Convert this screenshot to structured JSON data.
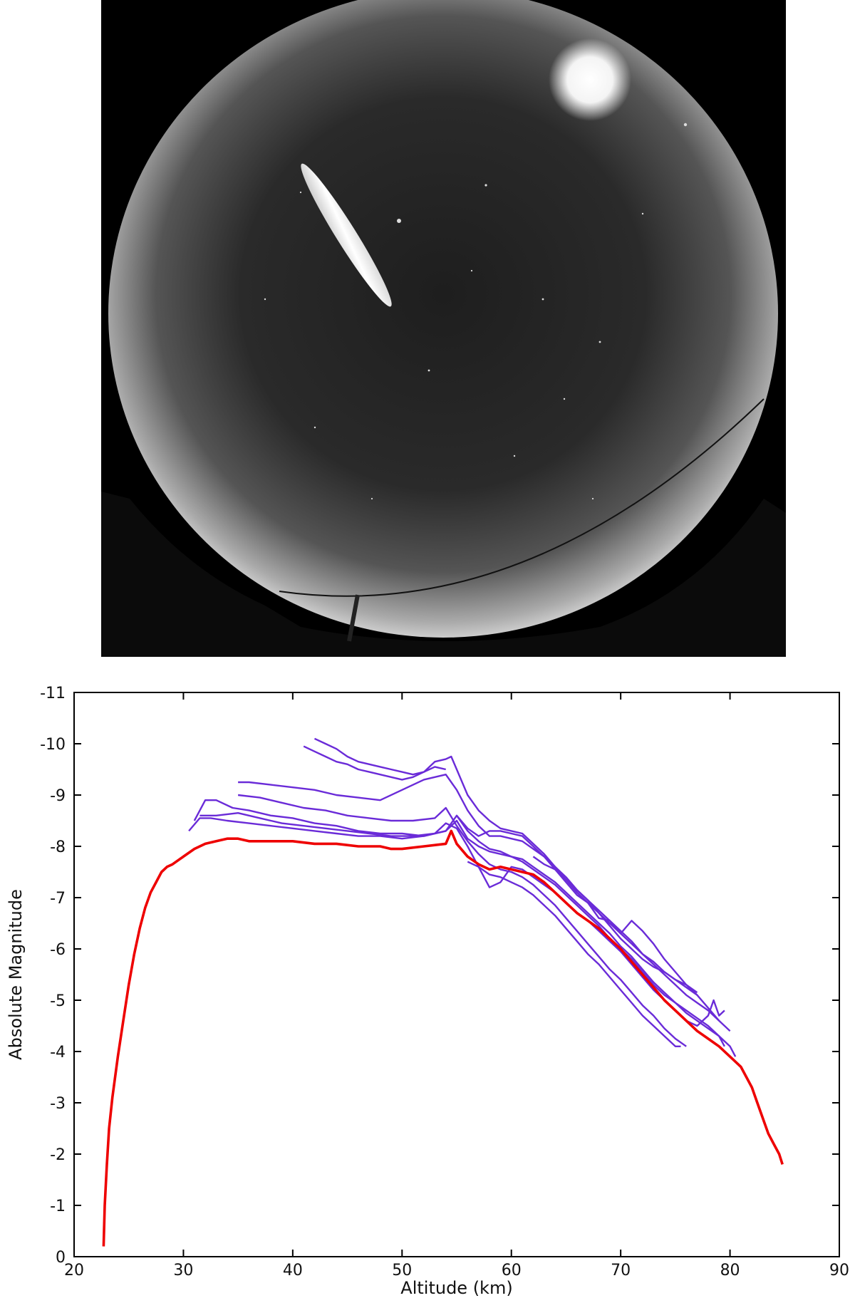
{
  "chart_data": {
    "type": "line",
    "title": "",
    "xlabel": "Altitude (km)",
    "ylabel": "Absolute Magnitude",
    "xlim": [
      20,
      90
    ],
    "ylim": [
      0,
      -11
    ],
    "y_inverted": true,
    "x_ticks": [
      "20",
      "30",
      "40",
      "50",
      "60",
      "70",
      "80",
      "90"
    ],
    "y_ticks": [
      "0",
      "-1",
      "-2",
      "-3",
      "-4",
      "-5",
      "-6",
      "-7",
      "-8",
      "-9",
      "-10",
      "-11"
    ],
    "grid": false,
    "legend": "none",
    "colors": {
      "reference": "#ee0000",
      "stations": "#6a2bd8"
    },
    "reference_curve": {
      "x": [
        22.7,
        22.8,
        23.0,
        23.2,
        23.5,
        24.0,
        24.5,
        25.0,
        25.5,
        26.0,
        26.5,
        27.0,
        27.5,
        28.0,
        28.5,
        29.0,
        30.0,
        31.0,
        32.0,
        33.0,
        34.0,
        35.0,
        36.0,
        38.0,
        40.0,
        42.0,
        44.0,
        46.0,
        48.0,
        49.0,
        50.0,
        52.0,
        54.0,
        54.5,
        55.0,
        56.0,
        57.0,
        58.0,
        59.0,
        60.0,
        61.0,
        62.0,
        63.0,
        64.0,
        65.0,
        66.0,
        67.0,
        68.0,
        69.0,
        70.0,
        71.0,
        72.0,
        73.0,
        74.0,
        75.0,
        76.0,
        77.0,
        78.0,
        79.0,
        80.0,
        81.0,
        81.5,
        82.0,
        82.5,
        83.0,
        83.5,
        84.0,
        84.5,
        84.8
      ],
      "y": [
        -0.2,
        -1.0,
        -1.8,
        -2.5,
        -3.1,
        -3.9,
        -4.6,
        -5.3,
        -5.9,
        -6.4,
        -6.8,
        -7.1,
        -7.3,
        -7.5,
        -7.6,
        -7.65,
        -7.8,
        -7.95,
        -8.05,
        -8.1,
        -8.15,
        -8.15,
        -8.1,
        -8.1,
        -8.1,
        -8.05,
        -8.05,
        -8.0,
        -8.0,
        -7.95,
        -7.95,
        -8.0,
        -8.05,
        -8.3,
        -8.05,
        -7.8,
        -7.65,
        -7.55,
        -7.6,
        -7.55,
        -7.5,
        -7.45,
        -7.3,
        -7.1,
        -6.9,
        -6.7,
        -6.55,
        -6.4,
        -6.2,
        -6.0,
        -5.75,
        -5.5,
        -5.25,
        -5.0,
        -4.8,
        -4.6,
        -4.4,
        -4.25,
        -4.1,
        -3.9,
        -3.7,
        -3.5,
        -3.3,
        -3.0,
        -2.7,
        -2.4,
        -2.2,
        -2.0,
        -1.8
      ]
    },
    "series": [
      {
        "x": [
          30.5,
          31.5,
          32.5,
          34.0,
          36.0,
          38.0,
          40.0,
          42.0,
          44.0,
          46.0,
          48.0,
          50.0,
          52.0,
          54.0,
          55.0,
          56.0,
          57.0,
          58.0,
          59.0,
          60.0,
          61.0,
          62.0,
          63.0,
          64.0,
          65.0,
          66.0,
          67.0,
          68.0,
          69.0,
          70.0,
          71.0,
          72.0,
          73.0,
          74.0,
          75.0,
          76.0,
          77.0,
          78.0,
          79.0,
          80.0,
          80.5
        ],
        "y": [
          -8.3,
          -8.55,
          -8.55,
          -8.5,
          -8.45,
          -8.4,
          -8.35,
          -8.3,
          -8.25,
          -8.2,
          -8.2,
          -8.15,
          -8.2,
          -8.3,
          -8.5,
          -8.15,
          -8.0,
          -7.9,
          -7.85,
          -7.8,
          -7.7,
          -7.55,
          -7.4,
          -7.25,
          -7.05,
          -6.85,
          -6.65,
          -6.45,
          -6.2,
          -6.0,
          -5.8,
          -5.55,
          -5.3,
          -5.1,
          -4.95,
          -4.8,
          -4.65,
          -4.5,
          -4.3,
          -4.1,
          -3.9
        ]
      },
      {
        "x": [
          31.0,
          32.0,
          33.0,
          34.5,
          36.0,
          38.0,
          40.0,
          42.0,
          44.0,
          46.0,
          48.0,
          50.0,
          52.0,
          54.0,
          55.0,
          56.0,
          57.0,
          58.0,
          59.0,
          60.0,
          61.0,
          62.0,
          63.0,
          64.0,
          65.0,
          66.0,
          67.0,
          68.0,
          69.0,
          70.0,
          71.0,
          72.0,
          73.0,
          74.0,
          75.0,
          76.0,
          77.0,
          78.0,
          79.0,
          79.5
        ],
        "y": [
          -8.5,
          -8.9,
          -8.9,
          -8.75,
          -8.7,
          -8.6,
          -8.55,
          -8.45,
          -8.4,
          -8.3,
          -8.25,
          -8.25,
          -8.2,
          -8.3,
          -8.6,
          -8.3,
          -8.1,
          -7.95,
          -7.9,
          -7.8,
          -7.75,
          -7.6,
          -7.45,
          -7.3,
          -7.1,
          -6.9,
          -6.7,
          -6.5,
          -6.3,
          -6.05,
          -5.85,
          -5.6,
          -5.35,
          -5.15,
          -4.95,
          -4.75,
          -4.6,
          -4.45,
          -4.3,
          -4.1
        ]
      },
      {
        "x": [
          35.0,
          36.0,
          38.0,
          40.0,
          42.0,
          44.0,
          46.0,
          48.0,
          50.0,
          52.0,
          54.0,
          55.0,
          56.0,
          57.0,
          58.0,
          59.0,
          60.0,
          61.0,
          62.0,
          63.0,
          64.0,
          65.0,
          66.0,
          67.0,
          68.0,
          69.0,
          70.0,
          71.0,
          72.0,
          73.0,
          74.0,
          75.0,
          76.0,
          77.0,
          78.0,
          79.0,
          80.0
        ],
        "y": [
          -9.25,
          -9.25,
          -9.2,
          -9.15,
          -9.1,
          -9.0,
          -8.95,
          -8.9,
          -9.1,
          -9.3,
          -9.4,
          -9.1,
          -8.7,
          -8.4,
          -8.2,
          -8.2,
          -8.15,
          -8.1,
          -7.95,
          -7.8,
          -7.6,
          -7.4,
          -7.15,
          -6.95,
          -6.75,
          -6.55,
          -6.35,
          -6.15,
          -5.9,
          -5.7,
          -5.5,
          -5.3,
          -5.1,
          -4.95,
          -4.8,
          -4.6,
          -4.4
        ]
      },
      {
        "x": [
          41.0,
          42.0,
          43.0,
          44.0,
          45.0,
          46.0,
          47.0,
          48.0,
          49.0,
          50.0,
          51.0,
          52.0,
          53.0,
          54.0,
          54.5,
          55.0,
          56.0,
          57.0,
          58.0,
          59.0,
          60.0,
          61.0,
          62.0,
          63.0,
          64.0,
          65.0,
          66.0,
          67.0,
          68.0,
          69.0,
          70.0,
          71.0,
          72.0,
          73.0,
          74.0,
          75.0,
          76.0,
          77.0
        ],
        "y": [
          -9.95,
          -9.85,
          -9.75,
          -9.65,
          -9.6,
          -9.5,
          -9.45,
          -9.4,
          -9.35,
          -9.3,
          -9.35,
          -9.45,
          -9.65,
          -9.7,
          -9.75,
          -9.5,
          -9.0,
          -8.7,
          -8.5,
          -8.35,
          -8.3,
          -8.25,
          -8.05,
          -7.85,
          -7.6,
          -7.35,
          -7.1,
          -6.9,
          -6.7,
          -6.5,
          -6.3,
          -6.1,
          -5.9,
          -5.75,
          -5.55,
          -5.4,
          -5.25,
          -5.1
        ]
      },
      {
        "x": [
          42.0,
          43.0,
          44.0,
          45.0,
          46.0,
          47.0,
          48.0,
          49.0,
          50.0,
          51.0,
          52.0,
          53.0,
          54.0
        ],
        "y": [
          -10.1,
          -10.0,
          -9.9,
          -9.75,
          -9.65,
          -9.6,
          -9.55,
          -9.5,
          -9.45,
          -9.4,
          -9.45,
          -9.55,
          -9.5
        ]
      },
      {
        "x": [
          35.0,
          37.0,
          39.0,
          41.0,
          43.0,
          45.0,
          47.0,
          49.0,
          51.0,
          53.0,
          54.0,
          55.0,
          56.0,
          57.0,
          58.0,
          59.0,
          60.0,
          61.0,
          62.0,
          63.0,
          64.0,
          65.0,
          66.0,
          67.0,
          68.0,
          69.0,
          70.0,
          71.0,
          72.0,
          73.0,
          74.0,
          75.0,
          76.0
        ],
        "y": [
          -9.0,
          -8.95,
          -8.85,
          -8.75,
          -8.7,
          -8.6,
          -8.55,
          -8.5,
          -8.5,
          -8.55,
          -8.75,
          -8.4,
          -8.1,
          -7.85,
          -7.65,
          -7.55,
          -7.5,
          -7.4,
          -7.25,
          -7.05,
          -6.85,
          -6.6,
          -6.35,
          -6.1,
          -5.85,
          -5.6,
          -5.4,
          -5.15,
          -4.9,
          -4.7,
          -4.45,
          -4.25,
          -4.1
        ]
      },
      {
        "x": [
          31.5,
          33.0,
          35.0,
          37.0,
          39.0,
          41.0,
          43.0,
          45.0,
          47.0,
          49.0,
          51.0,
          53.0,
          54.0,
          55.0,
          56.0,
          57.0,
          58.0,
          59.0,
          60.0,
          61.0,
          62.0,
          63.0,
          64.0,
          65.0,
          66.0,
          67.0,
          68.0,
          69.0,
          70.0,
          71.0,
          72.0,
          73.0,
          74.0,
          75.0,
          76.0,
          77.0,
          78.0,
          78.5,
          79.0,
          79.5
        ],
        "y": [
          -8.6,
          -8.6,
          -8.65,
          -8.55,
          -8.45,
          -8.4,
          -8.35,
          -8.3,
          -8.25,
          -8.2,
          -8.2,
          -8.25,
          -8.45,
          -8.35,
          -8.0,
          -7.6,
          -7.2,
          -7.3,
          -7.6,
          -7.55,
          -7.4,
          -7.25,
          -7.1,
          -6.9,
          -6.7,
          -6.55,
          -6.35,
          -6.15,
          -5.95,
          -5.7,
          -5.45,
          -5.2,
          -5.0,
          -4.8,
          -4.6,
          -4.5,
          -4.7,
          -5.0,
          -4.7,
          -4.8
        ]
      },
      {
        "x": [
          55.0,
          56.0,
          57.0,
          58.0,
          59.0,
          60.0,
          61.0,
          62.0,
          63.0,
          64.0,
          65.0,
          66.0,
          67.0,
          68.0,
          69.0,
          70.0,
          71.0,
          72.0,
          73.0,
          74.0,
          75.0,
          76.0,
          77.0,
          78.0,
          79.0
        ],
        "y": [
          -8.6,
          -8.35,
          -8.2,
          -8.3,
          -8.3,
          -8.25,
          -8.2,
          -8.0,
          -7.8,
          -7.55,
          -7.3,
          -7.05,
          -6.9,
          -6.6,
          -6.55,
          -6.3,
          -6.55,
          -6.35,
          -6.1,
          -5.8,
          -5.55,
          -5.3,
          -5.1,
          -4.85,
          -4.6
        ]
      },
      {
        "x": [
          56.0,
          57.0,
          58.0,
          59.0,
          60.0,
          61.0,
          62.0,
          63.0,
          64.0,
          65.0,
          66.0,
          67.0,
          68.0,
          69.0,
          70.0,
          71.0,
          72.0,
          73.0,
          74.0,
          75.0,
          75.5
        ],
        "y": [
          -7.7,
          -7.6,
          -7.45,
          -7.4,
          -7.3,
          -7.2,
          -7.05,
          -6.85,
          -6.65,
          -6.4,
          -6.15,
          -5.9,
          -5.7,
          -5.45,
          -5.2,
          -4.95,
          -4.7,
          -4.5,
          -4.3,
          -4.1,
          -4.1
        ]
      },
      {
        "x": [
          62.0,
          63.0,
          64.0,
          65.0,
          66.0,
          67.0,
          68.0,
          69.0,
          70.0,
          71.0,
          72.0,
          73.0,
          74.0,
          75.0,
          76.0,
          77.0
        ],
        "y": [
          -7.8,
          -7.65,
          -7.55,
          -7.35,
          -7.15,
          -6.95,
          -6.7,
          -6.45,
          -6.2,
          -6.0,
          -5.8,
          -5.65,
          -5.55,
          -5.4,
          -5.3,
          -5.15
        ]
      }
    ]
  }
}
